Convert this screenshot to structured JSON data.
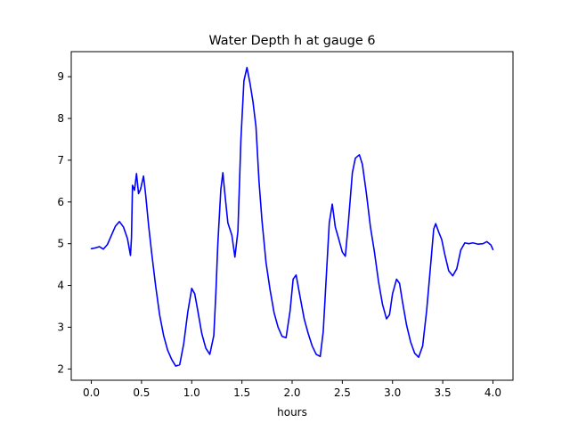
{
  "chart_data": {
    "type": "line",
    "title": "Water Depth h at gauge 6",
    "xlabel": "hours",
    "ylabel": "",
    "xlim": [
      -0.2,
      4.2
    ],
    "ylim": [
      1.73,
      9.6
    ],
    "xticks": [
      0.0,
      0.5,
      1.0,
      1.5,
      2.0,
      2.5,
      3.0,
      3.5,
      4.0
    ],
    "xtick_labels": [
      "0.0",
      "0.5",
      "1.0",
      "1.5",
      "2.0",
      "2.5",
      "3.0",
      "3.5",
      "4.0"
    ],
    "yticks": [
      2,
      3,
      4,
      5,
      6,
      7,
      8,
      9
    ],
    "ytick_labels": [
      "2",
      "3",
      "4",
      "5",
      "6",
      "7",
      "8",
      "9"
    ],
    "grid": false,
    "series": [
      {
        "color": "#0000ff",
        "points": [
          [
            0.0,
            4.88
          ],
          [
            0.04,
            4.9
          ],
          [
            0.08,
            4.93
          ],
          [
            0.12,
            4.87
          ],
          [
            0.16,
            4.98
          ],
          [
            0.2,
            5.2
          ],
          [
            0.24,
            5.42
          ],
          [
            0.28,
            5.53
          ],
          [
            0.32,
            5.4
          ],
          [
            0.36,
            5.12
          ],
          [
            0.39,
            4.72
          ],
          [
            0.4,
            5.15
          ],
          [
            0.41,
            6.4
          ],
          [
            0.43,
            6.28
          ],
          [
            0.45,
            6.68
          ],
          [
            0.47,
            6.2
          ],
          [
            0.49,
            6.3
          ],
          [
            0.52,
            6.62
          ],
          [
            0.54,
            6.2
          ],
          [
            0.57,
            5.45
          ],
          [
            0.6,
            4.8
          ],
          [
            0.64,
            4.0
          ],
          [
            0.68,
            3.3
          ],
          [
            0.72,
            2.8
          ],
          [
            0.76,
            2.45
          ],
          [
            0.8,
            2.23
          ],
          [
            0.84,
            2.07
          ],
          [
            0.88,
            2.1
          ],
          [
            0.92,
            2.6
          ],
          [
            0.96,
            3.35
          ],
          [
            1.0,
            3.93
          ],
          [
            1.03,
            3.8
          ],
          [
            1.06,
            3.4
          ],
          [
            1.1,
            2.85
          ],
          [
            1.14,
            2.5
          ],
          [
            1.18,
            2.35
          ],
          [
            1.22,
            2.8
          ],
          [
            1.24,
            3.8
          ],
          [
            1.26,
            5.0
          ],
          [
            1.29,
            6.3
          ],
          [
            1.31,
            6.7
          ],
          [
            1.33,
            6.2
          ],
          [
            1.36,
            5.5
          ],
          [
            1.4,
            5.2
          ],
          [
            1.43,
            4.68
          ],
          [
            1.46,
            5.3
          ],
          [
            1.49,
            7.5
          ],
          [
            1.52,
            8.9
          ],
          [
            1.55,
            9.22
          ],
          [
            1.58,
            8.85
          ],
          [
            1.61,
            8.4
          ],
          [
            1.64,
            7.8
          ],
          [
            1.67,
            6.5
          ],
          [
            1.7,
            5.55
          ],
          [
            1.74,
            4.55
          ],
          [
            1.78,
            3.9
          ],
          [
            1.82,
            3.35
          ],
          [
            1.86,
            3.0
          ],
          [
            1.9,
            2.78
          ],
          [
            1.94,
            2.75
          ],
          [
            1.98,
            3.4
          ],
          [
            2.01,
            4.15
          ],
          [
            2.04,
            4.25
          ],
          [
            2.07,
            3.85
          ],
          [
            2.12,
            3.2
          ],
          [
            2.16,
            2.85
          ],
          [
            2.2,
            2.55
          ],
          [
            2.24,
            2.35
          ],
          [
            2.28,
            2.3
          ],
          [
            2.31,
            2.9
          ],
          [
            2.34,
            4.2
          ],
          [
            2.37,
            5.5
          ],
          [
            2.4,
            5.95
          ],
          [
            2.43,
            5.4
          ],
          [
            2.46,
            5.15
          ],
          [
            2.5,
            4.8
          ],
          [
            2.53,
            4.7
          ],
          [
            2.56,
            5.5
          ],
          [
            2.6,
            6.7
          ],
          [
            2.63,
            7.05
          ],
          [
            2.67,
            7.13
          ],
          [
            2.7,
            6.9
          ],
          [
            2.74,
            6.2
          ],
          [
            2.78,
            5.4
          ],
          [
            2.82,
            4.8
          ],
          [
            2.86,
            4.1
          ],
          [
            2.9,
            3.55
          ],
          [
            2.94,
            3.2
          ],
          [
            2.97,
            3.3
          ],
          [
            3.0,
            3.8
          ],
          [
            3.04,
            4.15
          ],
          [
            3.07,
            4.05
          ],
          [
            3.1,
            3.6
          ],
          [
            3.14,
            3.05
          ],
          [
            3.18,
            2.65
          ],
          [
            3.22,
            2.38
          ],
          [
            3.26,
            2.28
          ],
          [
            3.3,
            2.55
          ],
          [
            3.34,
            3.4
          ],
          [
            3.38,
            4.5
          ],
          [
            3.41,
            5.35
          ],
          [
            3.43,
            5.48
          ],
          [
            3.46,
            5.28
          ],
          [
            3.49,
            5.1
          ],
          [
            3.52,
            4.75
          ],
          [
            3.56,
            4.35
          ],
          [
            3.6,
            4.23
          ],
          [
            3.64,
            4.4
          ],
          [
            3.68,
            4.85
          ],
          [
            3.72,
            5.02
          ],
          [
            3.76,
            5.0
          ],
          [
            3.8,
            5.02
          ],
          [
            3.85,
            4.99
          ],
          [
            3.9,
            5.0
          ],
          [
            3.94,
            5.05
          ],
          [
            3.98,
            4.97
          ],
          [
            4.0,
            4.86
          ]
        ]
      }
    ]
  }
}
